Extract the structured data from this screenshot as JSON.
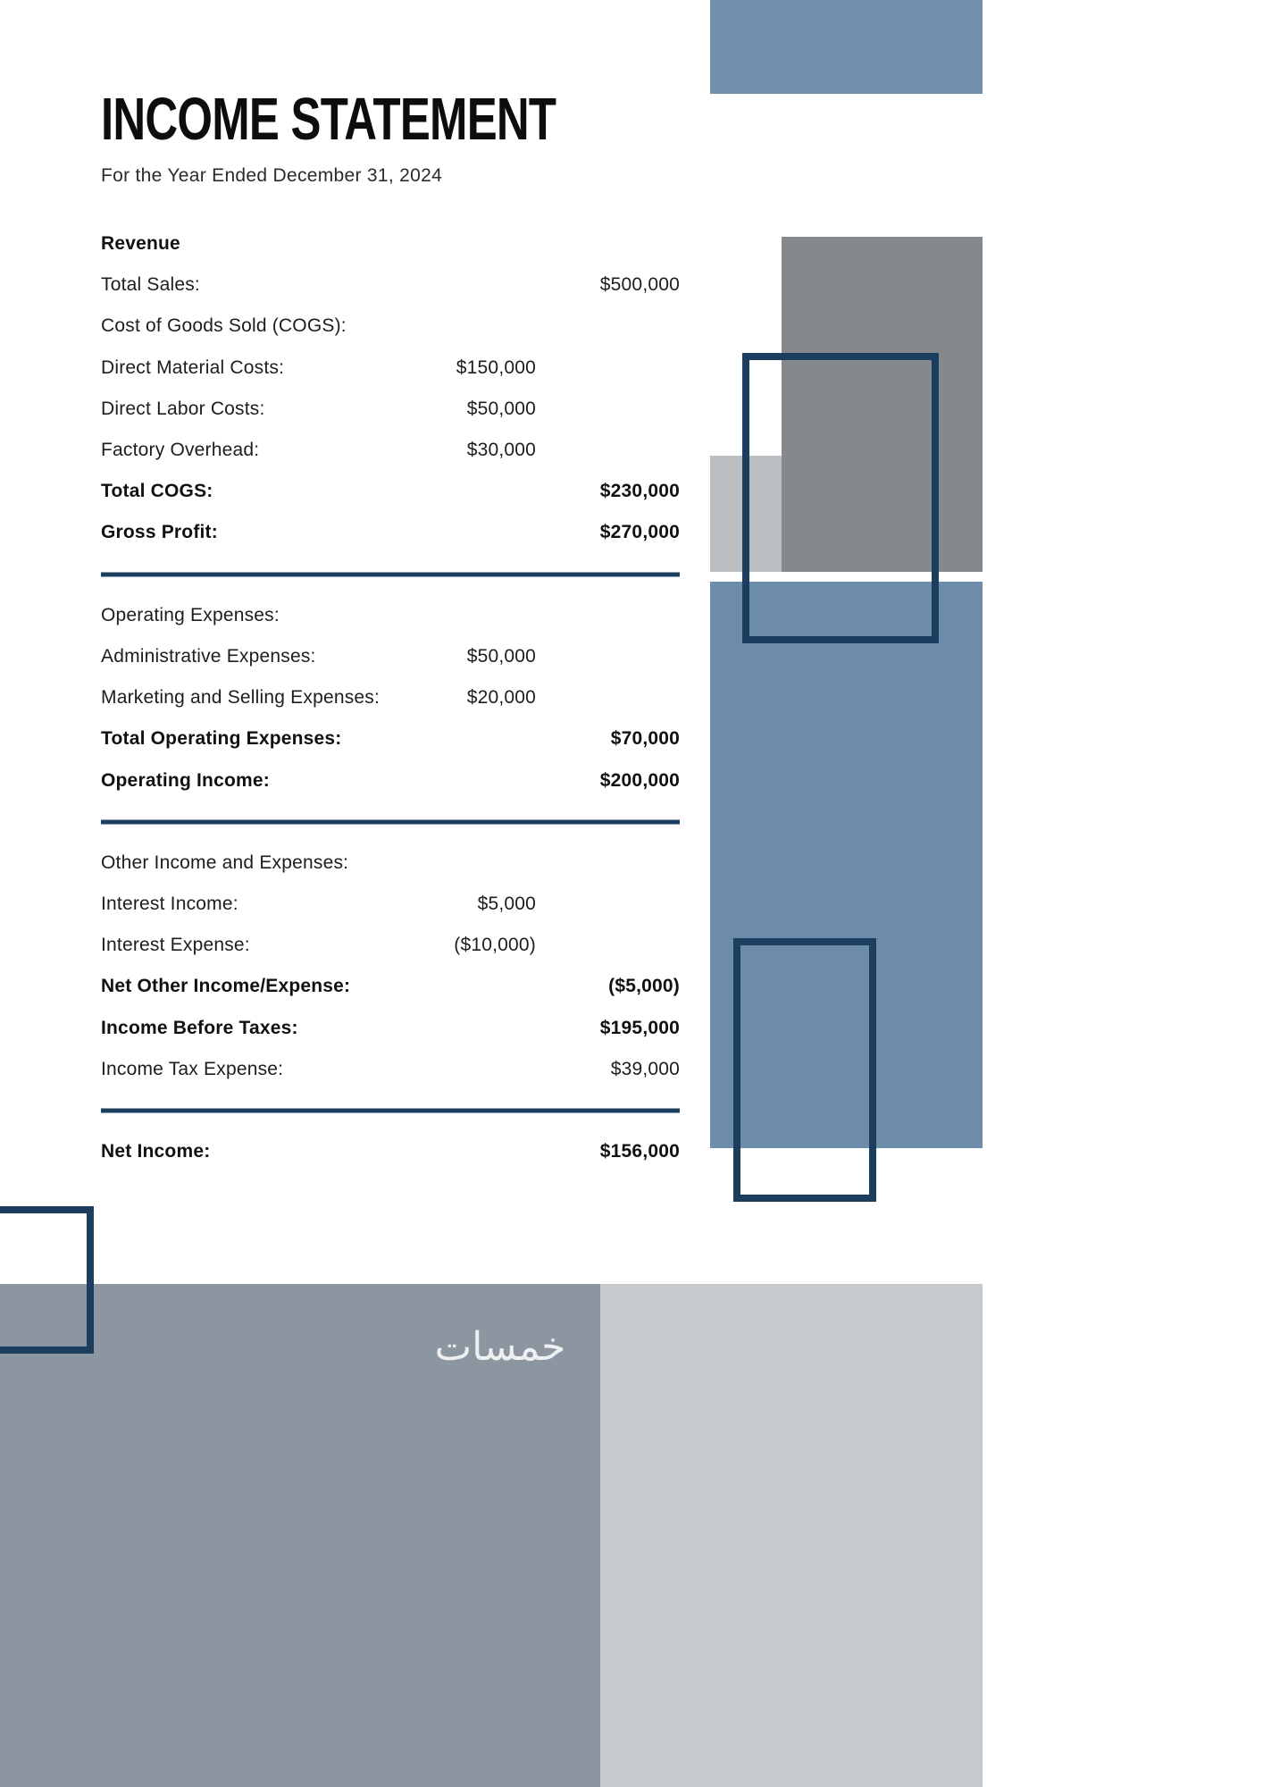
{
  "page": {
    "title": "INCOME STATEMENT",
    "subtitle": "For the Year Ended December 31, 2024"
  },
  "rows": [
    {
      "label": "Revenue",
      "bold": true
    },
    {
      "label": "Total Sales:",
      "right": "$500,000"
    },
    {
      "label": "Cost of Goods Sold (COGS):"
    },
    {
      "label": "Direct Material Costs:",
      "mid": "$150,000"
    },
    {
      "label": "Direct Labor Costs:",
      "mid": "$50,000"
    },
    {
      "label": "Factory Overhead:",
      "mid": "$30,000"
    },
    {
      "label": "Total COGS:",
      "right": "$230,000",
      "bold": true
    },
    {
      "label": "Gross Profit:",
      "right": "$270,000",
      "bold": true
    },
    {
      "label": "Operating Expenses:"
    },
    {
      "label": "Administrative Expenses:",
      "mid": "$50,000"
    },
    {
      "label": "Marketing and Selling Expenses:",
      "mid": "$20,000"
    },
    {
      "label": "Total Operating Expenses:",
      "right": "$70,000",
      "bold": true
    },
    {
      "label": "Operating Income:",
      "right": "$200,000",
      "bold": true
    },
    {
      "label": "Other Income and Expenses:"
    },
    {
      "label": "Interest Income:",
      "mid": "$5,000"
    },
    {
      "label": "Interest Expense:",
      "mid": "($10,000)"
    },
    {
      "label": "Net Other Income/Expense:",
      "right": "($5,000)",
      "bold": true
    },
    {
      "label": "Income Before Taxes:",
      "right": "$195,000",
      "bold": true
    },
    {
      "label": "Income Tax Expense:",
      "right": "$39,000"
    },
    {
      "label": "Net Income:",
      "right": "$156,000",
      "bold": true
    }
  ],
  "watermark": "خمسات",
  "colors": {
    "navy": "#1c3e5e",
    "steel_blue_top": "#7090ac",
    "steel_blue_big": "#6d8ca9",
    "dark_gray": "#84898e",
    "light_gray_small": "#bcbfc1",
    "bottom_gray_blue": "#8b96a0",
    "bottom_light_gray": "#c7cacc"
  }
}
